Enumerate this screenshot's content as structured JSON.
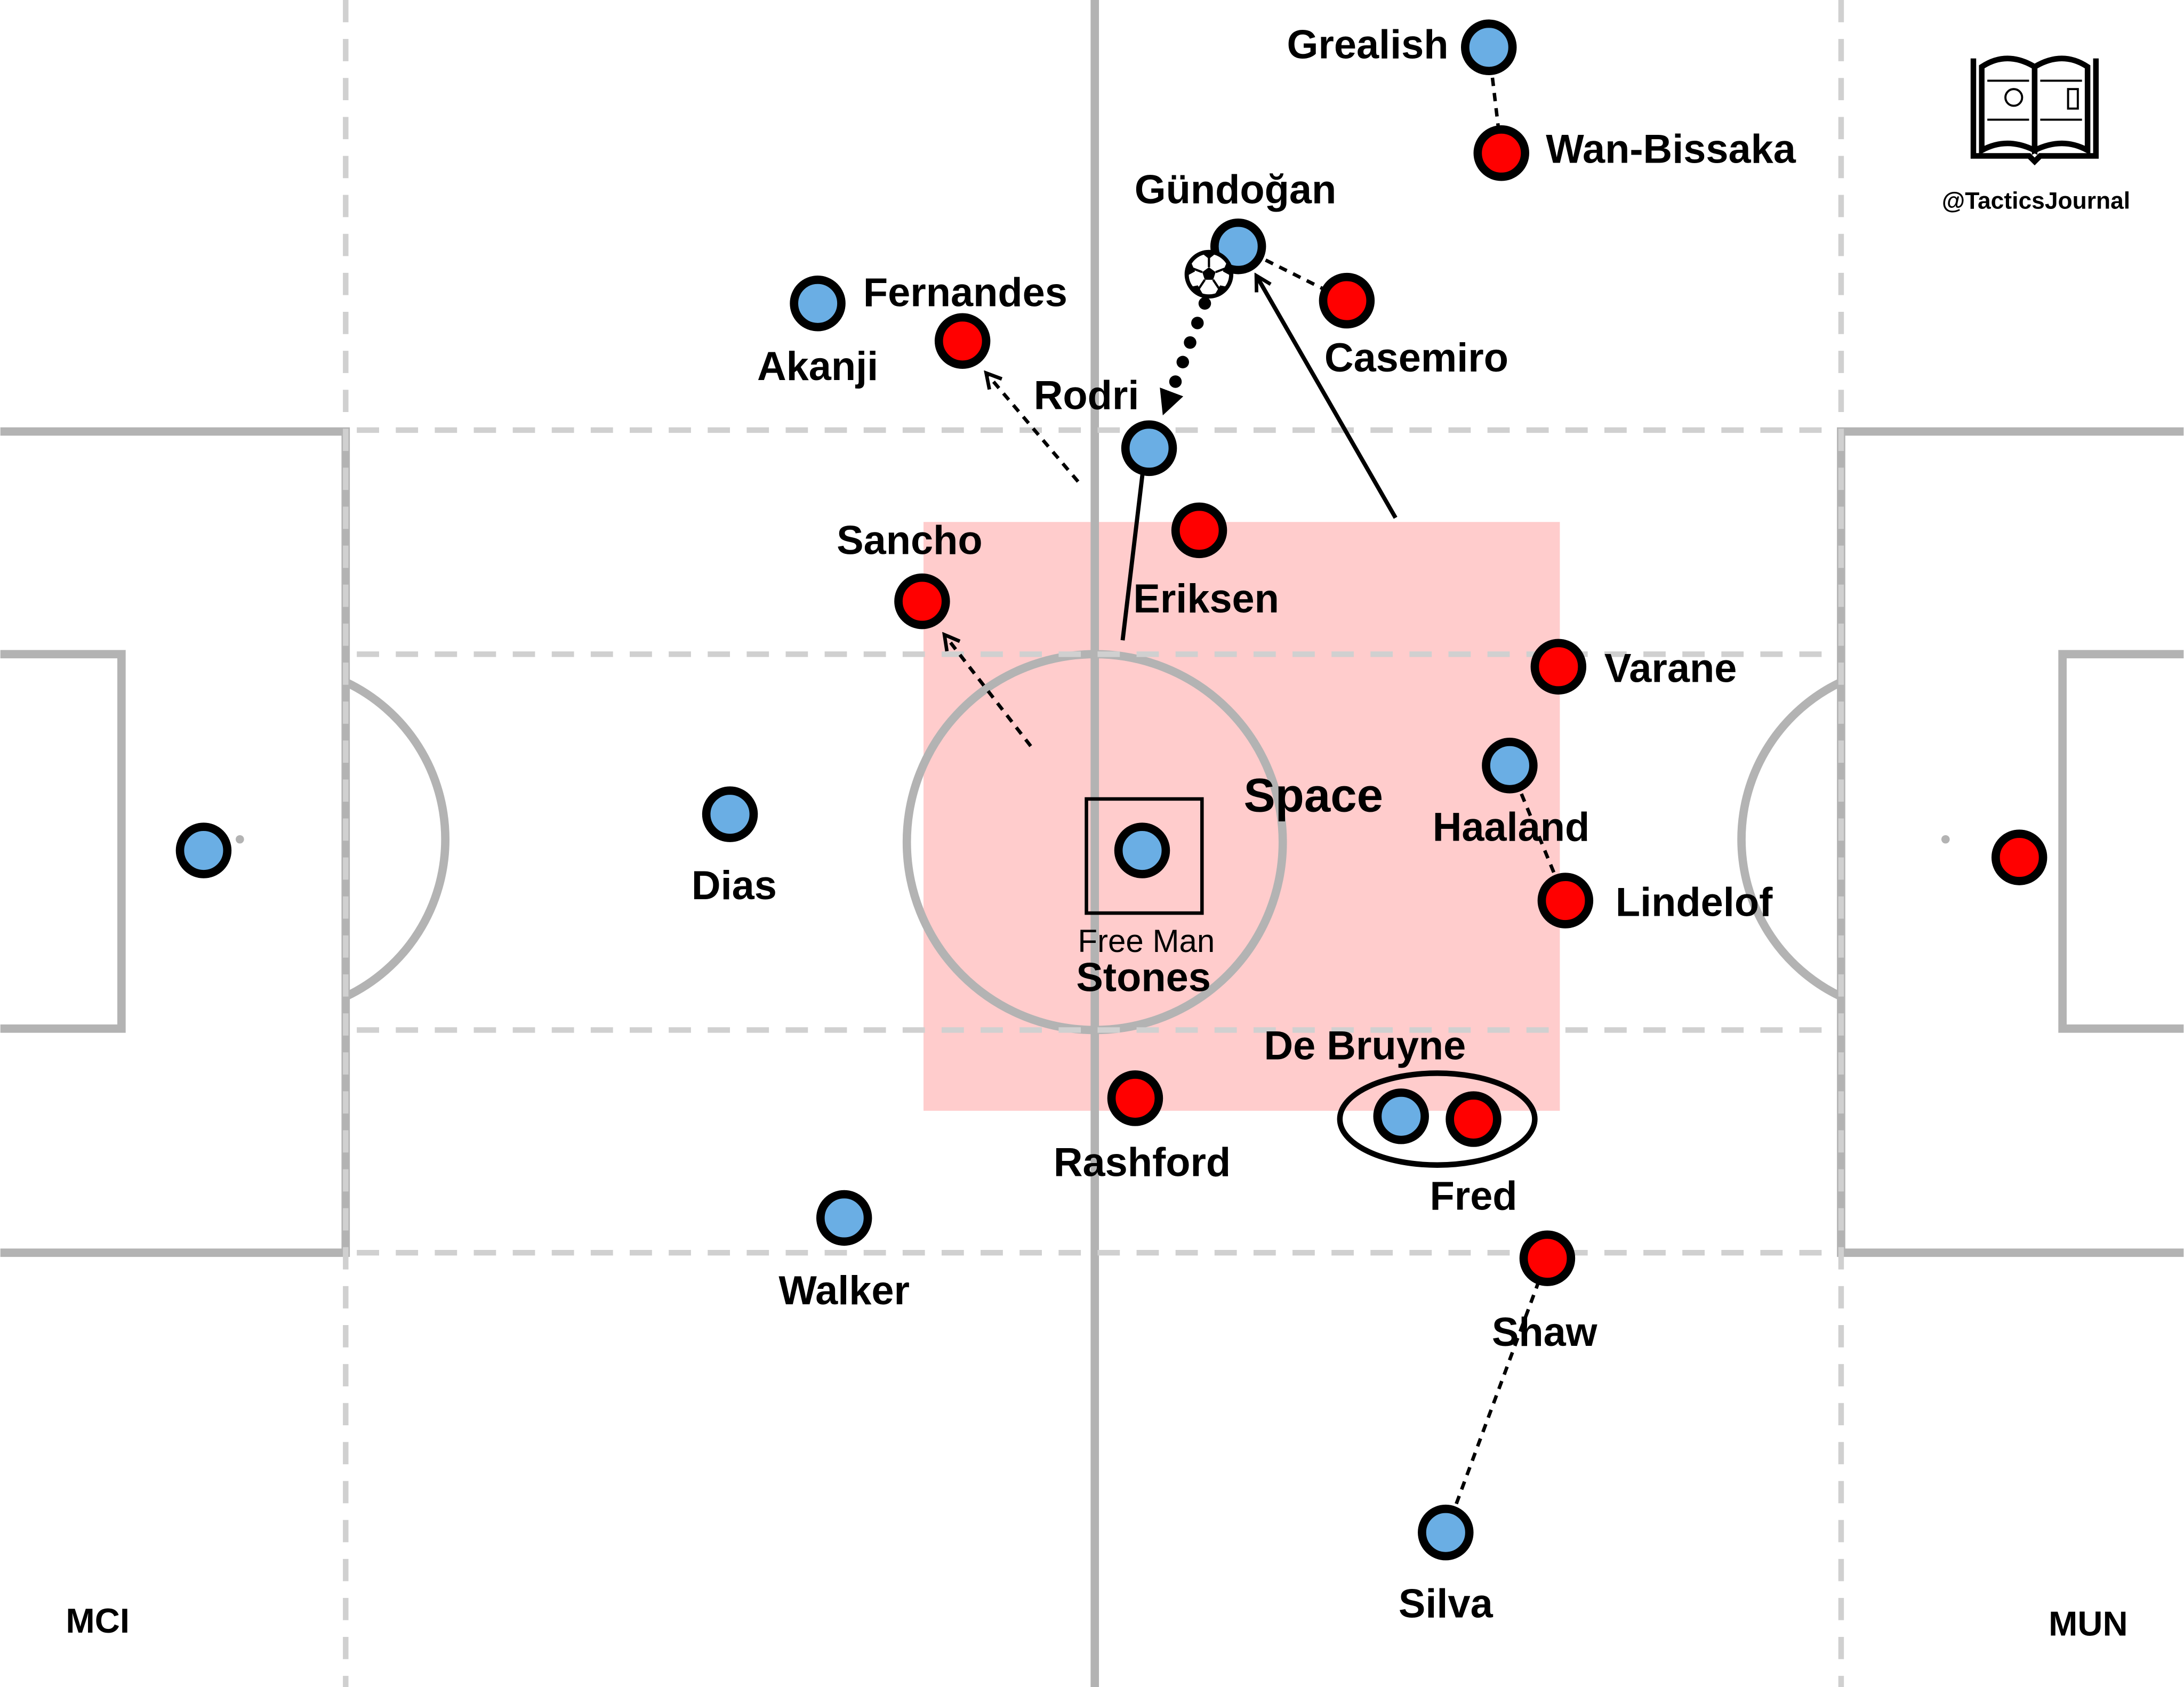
{
  "credit": "@TacticsJournal",
  "teams": {
    "home": {
      "code": "MCI",
      "color": "#6aaee4"
    },
    "away": {
      "code": "MUN",
      "color": "#ff0000"
    }
  },
  "annotations": {
    "space": "Space",
    "free_man": "Free Man"
  },
  "colors": {
    "zone": "#ffcccc",
    "lines": "#b3b3b3",
    "team_code": "#aaaaaa"
  },
  "players": {
    "mci_gk": {
      "team": "home",
      "name": ""
    },
    "dias": {
      "team": "home",
      "name": "Dias"
    },
    "walker": {
      "team": "home",
      "name": "Walker"
    },
    "akanji": {
      "team": "home",
      "name": "Akanji"
    },
    "rodri": {
      "team": "home",
      "name": "Rodri"
    },
    "stones": {
      "team": "home",
      "name": "Stones"
    },
    "gundogan": {
      "team": "home",
      "name": "Gündoğan"
    },
    "grealish": {
      "team": "home",
      "name": "Grealish"
    },
    "haaland": {
      "team": "home",
      "name": "Haaland"
    },
    "de_bruyne": {
      "team": "home",
      "name": "De Bruyne"
    },
    "silva": {
      "team": "home",
      "name": "Silva"
    },
    "mun_gk": {
      "team": "away",
      "name": ""
    },
    "fernandes": {
      "team": "away",
      "name": "Fernandes"
    },
    "casemiro": {
      "team": "away",
      "name": "Casemiro"
    },
    "wan_bissaka": {
      "team": "away",
      "name": "Wan-Bissaka"
    },
    "eriksen": {
      "team": "away",
      "name": "Eriksen"
    },
    "sancho": {
      "team": "away",
      "name": "Sancho"
    },
    "varane": {
      "team": "away",
      "name": "Varane"
    },
    "lindelof": {
      "team": "away",
      "name": "Lindelof"
    },
    "rashford": {
      "team": "away",
      "name": "Rashford"
    },
    "fred": {
      "team": "away",
      "name": "Fred"
    },
    "shaw": {
      "team": "away",
      "name": "Shaw"
    }
  }
}
